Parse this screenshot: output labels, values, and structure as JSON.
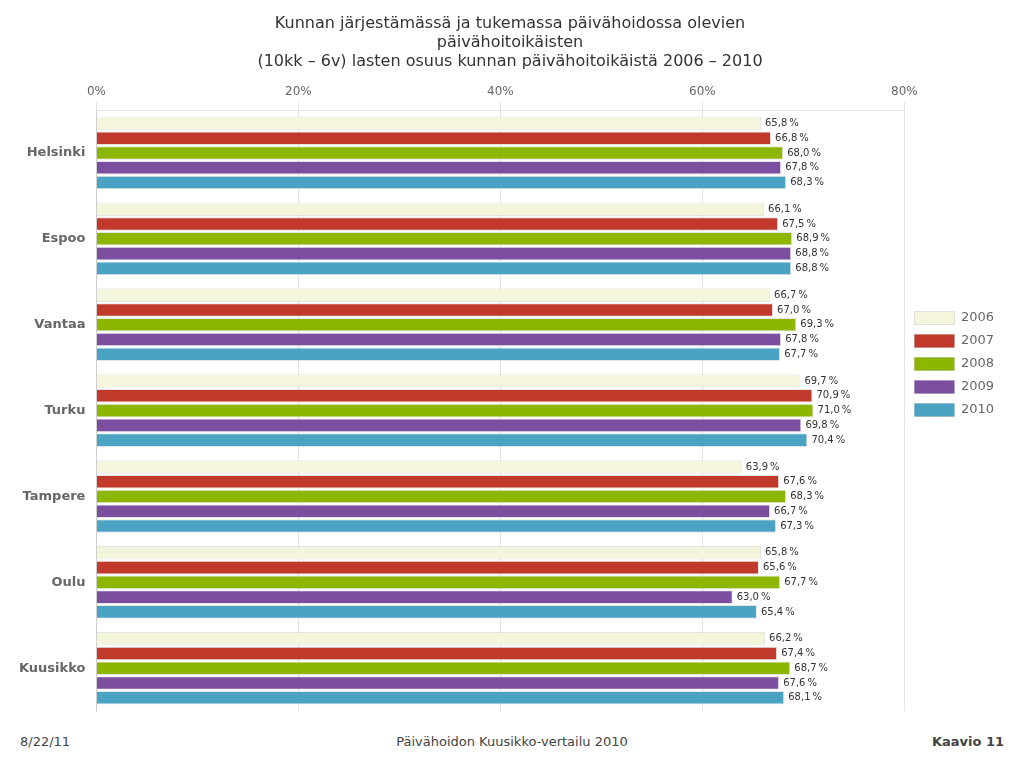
{
  "chart_data": {
    "type": "bar",
    "orientation": "horizontal",
    "title": "Kunnan järjestämässä ja tukemassa päivähoidossa olevien\npäivähoitoikäisten\n(10kk – 6v) lasten osuus kunnan päivähoitoikäistä 2006 – 2010",
    "categories": [
      "Helsinki",
      "Espoo",
      "Vantaa",
      "Turku",
      "Tampere",
      "Oulu",
      "Kuusikko"
    ],
    "series": [
      {
        "name": "2006",
        "color": "#f5f5dc",
        "values": [
          65.8,
          66.1,
          66.7,
          69.7,
          63.9,
          65.8,
          66.2
        ],
        "value_labels": [
          "65,8 %",
          "66,1 %",
          "66,7 %",
          "69,7 %",
          "63,9 %",
          "65,8 %",
          "66,2 %"
        ]
      },
      {
        "name": "2007",
        "color": "#c0392b",
        "values": [
          66.8,
          67.5,
          67.0,
          70.9,
          67.6,
          65.6,
          67.4
        ],
        "value_labels": [
          "66,8 %",
          "67,5 %",
          "67,0 %",
          "70,9 %",
          "67,6 %",
          "65,6 %",
          "67,4 %"
        ]
      },
      {
        "name": "2008",
        "color": "#8db600",
        "values": [
          68.0,
          68.9,
          69.3,
          71.0,
          68.3,
          67.7,
          68.7
        ],
        "value_labels": [
          "68,0 %",
          "68,9 %",
          "69,3 %",
          "71,0 %",
          "68,3 %",
          "67,7 %",
          "68,7 %"
        ]
      },
      {
        "name": "2009",
        "color": "#7b4ea0",
        "values": [
          67.8,
          68.8,
          67.8,
          69.8,
          66.7,
          63.0,
          67.6
        ],
        "value_labels": [
          "67,8 %",
          "68,8 %",
          "67,8 %",
          "69,8 %",
          "66,7 %",
          "63,0 %",
          "67,6 %"
        ]
      },
      {
        "name": "2010",
        "color": "#4ba3c3",
        "values": [
          68.3,
          68.8,
          67.7,
          70.4,
          67.3,
          65.4,
          68.1
        ],
        "value_labels": [
          "68,3 %",
          "68,8 %",
          "67,7 %",
          "70,4 %",
          "67,3 %",
          "65,4 %",
          "68,1 %"
        ]
      }
    ],
    "xlim": [
      0,
      80
    ],
    "xticks": [
      {
        "value": 0,
        "label": "0%"
      },
      {
        "value": 20,
        "label": "20%"
      },
      {
        "value": 40,
        "label": "40%"
      },
      {
        "value": 60,
        "label": "60%"
      },
      {
        "value": 80,
        "label": "80%"
      }
    ],
    "grid": true,
    "legend": "right",
    "data_labels": true,
    "annotations": [
      "8/22/11",
      "Päivähoidon Kuusikko-vertailu 2010",
      "Kaavio 11"
    ]
  }
}
